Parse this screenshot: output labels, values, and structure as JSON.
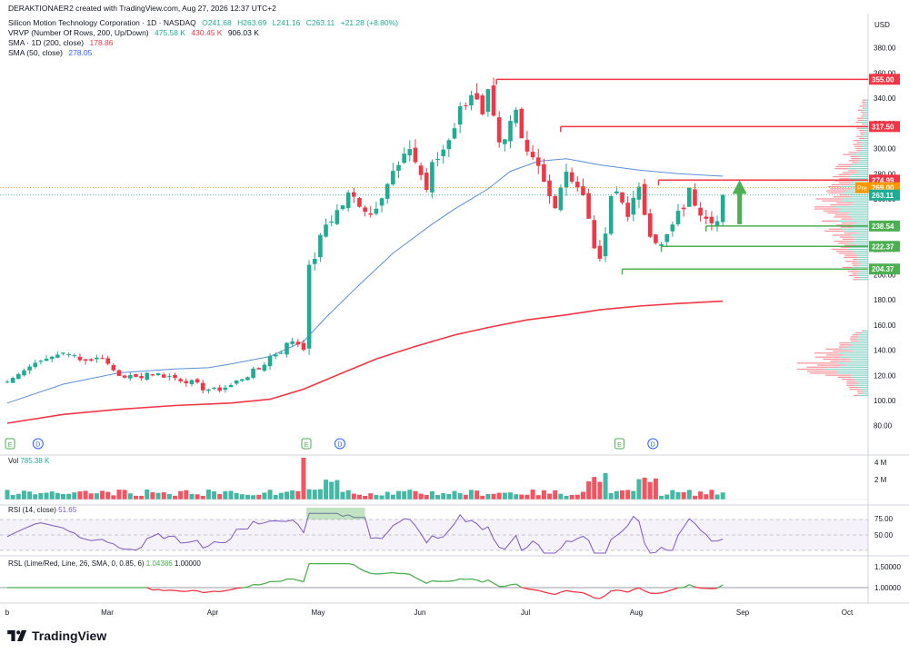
{
  "header": {
    "created_by": "DERAKTIONAER2 created with TradingView.com, Aug 27, 2026 12:37 UTC+2",
    "symbol": "Silicon Motion Technology Corporation · 1D · NASDAQ",
    "ohlc": {
      "o": "O241.68",
      "h": "H263.69",
      "l": "L241.16",
      "c": "C263.11",
      "chg": "+21.28 (+8.80%)"
    },
    "vrvp": {
      "label": "VRVP (Number Of Rows, 200, Up/Down)",
      "up": "475.58 K",
      "down": "430.45 K",
      "total": "906.03 K"
    },
    "sma200": {
      "label": "SMA · 1D (200, close)",
      "value": "178.86"
    },
    "sma50": {
      "label": "SMA (50, close)",
      "value": "278.05"
    }
  },
  "currency": "USD",
  "panes": {
    "volume": {
      "label": "Vol",
      "value": "785.38 K",
      "ticks": [
        "4 M",
        "2 M"
      ]
    },
    "rsi": {
      "label": "RSI (14, close)",
      "value": "51.65",
      "ticks": [
        "75.00",
        "50.00"
      ]
    },
    "rsl": {
      "label": "RSL (Lime/Red, Line, 26, SMA, 0, 0.85, 6)",
      "v1": "1.04386",
      "v2": "1.00000",
      "ticks": [
        "1.50000",
        "1.00000"
      ]
    }
  },
  "brand": "TradingView",
  "colors": {
    "up": "#22ab94",
    "down": "#f23645",
    "sma200": "#f23645",
    "sma50": "#5b8fd9",
    "green_level": "#4caf50",
    "red_level": "#f23645",
    "pre": "#ff9800",
    "rsi": "#7e57c2",
    "rsl_lime": "#4caf50",
    "rsl_red": "#f23645"
  },
  "chart_data": {
    "type": "candlestick",
    "title": "Silicon Motion Technology Corporation · 1D · NASDAQ",
    "ylabel": "USD",
    "ylim": [
      70,
      395
    ],
    "y_ticks": [
      80,
      100,
      120,
      140,
      160,
      180,
      200,
      220,
      240,
      260,
      280,
      300,
      320,
      340,
      360,
      380
    ],
    "x_ticks": [
      "b",
      "Mar",
      "Apr",
      "May",
      "Jun",
      "Jul",
      "Aug",
      "Sep",
      "Oct"
    ],
    "close_path": [
      [
        0,
        115
      ],
      [
        5,
        130
      ],
      [
        10,
        138
      ],
      [
        15,
        132
      ],
      [
        17,
        136
      ],
      [
        18,
        127
      ],
      [
        20,
        120
      ],
      [
        23,
        118
      ],
      [
        25,
        122
      ],
      [
        28,
        120
      ],
      [
        30,
        118
      ],
      [
        32,
        116
      ],
      [
        35,
        110
      ],
      [
        37,
        108
      ],
      [
        40,
        112
      ],
      [
        42,
        118
      ],
      [
        45,
        125
      ],
      [
        47,
        135
      ],
      [
        49,
        140
      ],
      [
        51,
        148
      ],
      [
        53,
        143
      ],
      [
        53.3,
        196
      ],
      [
        55,
        215
      ],
      [
        57,
        240
      ],
      [
        59,
        250
      ],
      [
        61,
        262
      ],
      [
        63,
        258
      ],
      [
        65,
        248
      ],
      [
        67,
        266
      ],
      [
        69,
        280
      ],
      [
        71,
        290
      ],
      [
        72,
        302
      ],
      [
        73,
        290
      ],
      [
        75,
        268
      ],
      [
        76,
        285
      ],
      [
        78,
        300
      ],
      [
        80,
        320
      ],
      [
        82,
        340
      ],
      [
        83,
        346
      ],
      [
        84,
        335
      ],
      [
        85,
        322
      ],
      [
        86,
        340
      ],
      [
        87,
        320
      ],
      [
        88,
        300
      ],
      [
        89,
        304
      ],
      [
        90,
        320
      ],
      [
        91,
        330
      ],
      [
        92,
        315
      ],
      [
        93,
        300
      ],
      [
        95,
        290
      ],
      [
        96,
        275
      ],
      [
        97,
        260
      ],
      [
        98,
        250
      ],
      [
        99,
        272
      ],
      [
        101,
        280
      ],
      [
        103,
        262
      ],
      [
        104,
        245
      ],
      [
        105,
        225
      ],
      [
        106,
        208
      ],
      [
        108,
        258
      ],
      [
        109,
        265
      ],
      [
        111,
        250
      ],
      [
        113,
        265
      ],
      [
        115,
        235
      ],
      [
        117,
        222
      ],
      [
        119,
        238
      ],
      [
        121,
        255
      ],
      [
        122,
        265
      ],
      [
        124,
        252
      ],
      [
        126,
        246
      ],
      [
        127,
        242
      ],
      [
        128,
        263.11
      ]
    ],
    "sma50": [
      [
        0,
        98
      ],
      [
        10,
        113
      ],
      [
        20,
        122
      ],
      [
        30,
        125
      ],
      [
        36,
        126
      ],
      [
        40,
        129
      ],
      [
        47,
        135
      ],
      [
        53,
        147
      ],
      [
        57,
        166
      ],
      [
        63,
        192
      ],
      [
        69,
        217
      ],
      [
        76,
        240
      ],
      [
        80,
        252
      ],
      [
        86,
        268
      ],
      [
        90,
        282
      ],
      [
        95,
        290
      ],
      [
        100,
        292
      ],
      [
        106,
        287
      ],
      [
        113,
        283
      ],
      [
        120,
        280
      ],
      [
        128,
        278.05
      ]
    ],
    "sma200": [
      [
        0,
        82
      ],
      [
        10,
        89
      ],
      [
        20,
        93
      ],
      [
        30,
        96
      ],
      [
        40,
        98
      ],
      [
        47,
        101
      ],
      [
        53,
        109
      ],
      [
        60,
        122
      ],
      [
        66,
        133
      ],
      [
        73,
        143
      ],
      [
        80,
        152
      ],
      [
        86,
        158
      ],
      [
        93,
        164
      ],
      [
        100,
        168
      ],
      [
        106,
        172
      ],
      [
        113,
        175
      ],
      [
        120,
        177
      ],
      [
        128,
        178.86
      ]
    ],
    "levels": [
      {
        "price": 355.0,
        "label": "355.00",
        "color": "red"
      },
      {
        "price": 317.5,
        "label": "317.50",
        "color": "red"
      },
      {
        "price": 274.99,
        "label": "274.99",
        "color": "red"
      },
      {
        "price": 238.54,
        "label": "238.54",
        "color": "green"
      },
      {
        "price": 222.37,
        "label": "222.37",
        "color": "green"
      },
      {
        "price": 204.37,
        "label": "204.37",
        "color": "green"
      }
    ],
    "price_badges": [
      {
        "price": 269.0,
        "label": "269.00",
        "tag": "Pre"
      },
      {
        "price": 263.11,
        "label": "263.11",
        "tag": ""
      }
    ],
    "events": [
      {
        "x": 0.5,
        "type": "E"
      },
      {
        "x": 5.5,
        "type": "D"
      },
      {
        "x": 53.5,
        "type": "E"
      },
      {
        "x": 59.5,
        "type": "D"
      },
      {
        "x": 109.5,
        "type": "E"
      },
      {
        "x": 115.5,
        "type": "D"
      }
    ]
  }
}
